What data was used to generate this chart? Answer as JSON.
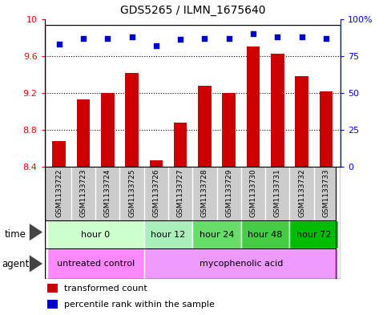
{
  "title": "GDS5265 / ILMN_1675640",
  "samples": [
    "GSM1133722",
    "GSM1133723",
    "GSM1133724",
    "GSM1133725",
    "GSM1133726",
    "GSM1133727",
    "GSM1133728",
    "GSM1133729",
    "GSM1133730",
    "GSM1133731",
    "GSM1133732",
    "GSM1133733"
  ],
  "bar_values": [
    8.68,
    9.13,
    9.2,
    9.42,
    8.47,
    8.88,
    9.28,
    9.2,
    9.7,
    9.62,
    9.38,
    9.22
  ],
  "percentile_values": [
    83,
    87,
    87,
    88,
    82,
    86,
    87,
    87,
    90,
    88,
    88,
    87
  ],
  "ylim_left": [
    8.4,
    10.0
  ],
  "ylim_right": [
    0,
    100
  ],
  "yticks_left": [
    8.4,
    8.8,
    9.2,
    9.6,
    10.0
  ],
  "ytick_labels_left": [
    "8.4",
    "8.8",
    "9.2",
    "9.6",
    "10"
  ],
  "yticks_right": [
    0,
    25,
    50,
    75,
    100
  ],
  "ytick_labels_right": [
    "0",
    "25",
    "50",
    "75",
    "100%"
  ],
  "bar_color": "#cc0000",
  "dot_color": "#0000cc",
  "bar_width": 0.55,
  "time_groups": [
    {
      "label": "hour 0",
      "start": 0,
      "end": 3,
      "color": "#ccffcc"
    },
    {
      "label": "hour 12",
      "start": 4,
      "end": 5,
      "color": "#aaeebb"
    },
    {
      "label": "hour 24",
      "start": 6,
      "end": 7,
      "color": "#66dd66"
    },
    {
      "label": "hour 48",
      "start": 8,
      "end": 9,
      "color": "#44cc44"
    },
    {
      "label": "hour 72",
      "start": 10,
      "end": 11,
      "color": "#00bb00"
    }
  ],
  "agent_groups": [
    {
      "label": "untreated control",
      "start": 0,
      "end": 3,
      "color": "#ff88ff"
    },
    {
      "label": "mycophenolic acid",
      "start": 4,
      "end": 11,
      "color": "#ee99ff"
    }
  ],
  "legend_bar_label": "transformed count",
  "legend_dot_label": "percentile rank within the sample",
  "sample_bg_color": "#cccccc",
  "border_color": "#000000"
}
